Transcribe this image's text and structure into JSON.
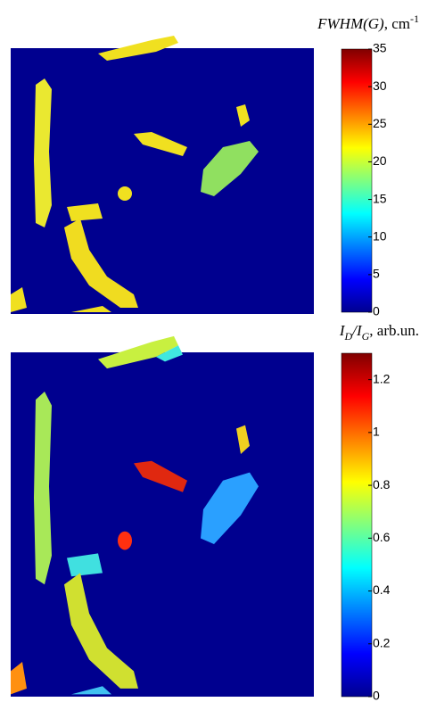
{
  "chart_data": [
    {
      "type": "heatmap",
      "title_parts": [
        "FWHM(G)",
        ", cm",
        "-1"
      ],
      "colormap": "jet",
      "clim": [
        0,
        35
      ],
      "cticks": [
        0,
        5,
        10,
        15,
        20,
        25,
        30,
        35
      ]
    },
    {
      "type": "heatmap",
      "title_parts": [
        "I",
        "D",
        "/I",
        "G",
        ", arb.un."
      ],
      "colormap": "jet",
      "clim": [
        0,
        1.3
      ],
      "cticks": [
        0,
        0.2,
        0.4,
        0.6,
        0.8,
        1,
        1.2
      ]
    }
  ]
}
